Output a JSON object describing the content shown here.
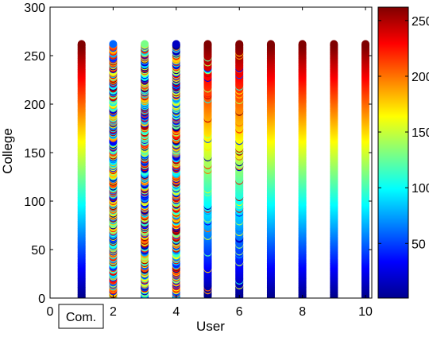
{
  "chart_data": {
    "type": "scatter",
    "title": "",
    "xlabel": "User",
    "ylabel": "College",
    "xlim": [
      0,
      10.2
    ],
    "ylim": [
      0,
      300
    ],
    "x_ticks": [
      0,
      2,
      4,
      6,
      8,
      10
    ],
    "y_ticks": [
      0,
      50,
      100,
      150,
      200,
      250,
      300
    ],
    "x_tick_labels": [
      "0",
      "2",
      "4",
      "6",
      "8",
      "10"
    ],
    "y_tick_labels": [
      "0",
      "50",
      "100",
      "150",
      "200",
      "250",
      "300"
    ],
    "grid": false,
    "colormap": "jet",
    "colorbar": {
      "range": [
        1,
        262
      ],
      "ticks": [
        50,
        100,
        150,
        200,
        250
      ],
      "tick_labels": [
        "50",
        "100",
        "150",
        "200",
        "250"
      ]
    },
    "points_per_column": 262,
    "columns": [
      {
        "x": 1,
        "color_mode": "sorted",
        "label": "Com."
      },
      {
        "x": 2,
        "color_mode": "random"
      },
      {
        "x": 3,
        "color_mode": "random"
      },
      {
        "x": 4,
        "color_mode": "random"
      },
      {
        "x": 5,
        "color_mode": "mostly-sorted"
      },
      {
        "x": 6,
        "color_mode": "mostly-sorted"
      },
      {
        "x": 7,
        "color_mode": "sorted"
      },
      {
        "x": 8,
        "color_mode": "sorted"
      },
      {
        "x": 9,
        "color_mode": "sorted"
      },
      {
        "x": 10,
        "color_mode": "sorted"
      }
    ],
    "annotations": [
      {
        "text": "Com.",
        "x": 1
      }
    ]
  }
}
